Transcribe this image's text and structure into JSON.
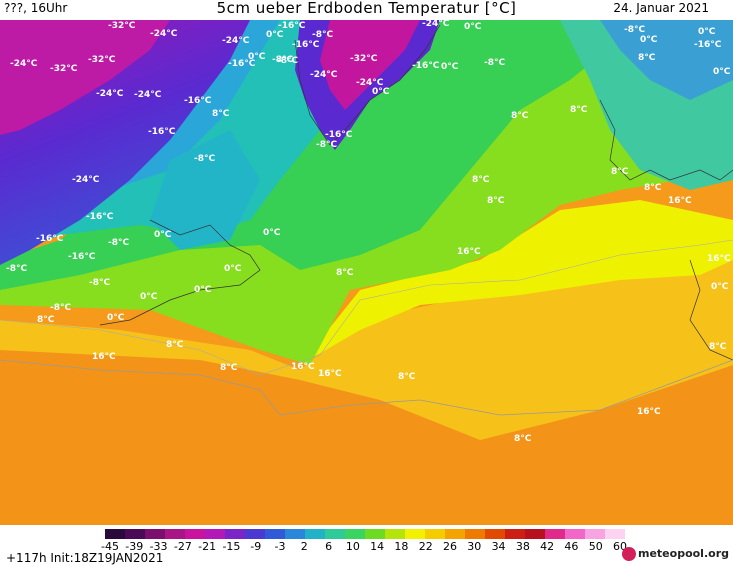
{
  "header": {
    "left": "???, 16Uhr",
    "title": "5cm ueber Erdboden Temperatur [°C]",
    "date": "24. Januar 2021"
  },
  "map": {
    "labels": [
      {
        "id": "l1",
        "t": "-32°C"
      },
      {
        "id": "l2",
        "t": "-24°C"
      },
      {
        "id": "l3",
        "t": "-24°C"
      },
      {
        "id": "l4",
        "t": "-16°C"
      },
      {
        "id": "l5",
        "t": "-8°C"
      },
      {
        "id": "l6",
        "t": "-24°C"
      },
      {
        "id": "l7",
        "t": "0°C"
      },
      {
        "id": "l8",
        "t": "-16°C"
      },
      {
        "id": "l9",
        "t": "0°C"
      },
      {
        "id": "l10",
        "t": "-8°C"
      },
      {
        "id": "l11",
        "t": "0°C"
      },
      {
        "id": "l12",
        "t": "-24°C"
      },
      {
        "id": "l13",
        "t": "-32°C"
      },
      {
        "id": "l14",
        "t": "-32°C"
      },
      {
        "id": "l15",
        "t": "-24°C"
      },
      {
        "id": "l16",
        "t": "-16°C"
      },
      {
        "id": "l17",
        "t": "-8°C"
      },
      {
        "id": "l18",
        "t": "-16°C"
      },
      {
        "id": "l19",
        "t": "-24°C"
      },
      {
        "id": "l20",
        "t": "-32°C"
      },
      {
        "id": "l21",
        "t": "-16°C"
      },
      {
        "id": "l22",
        "t": "0°C"
      },
      {
        "id": "l23",
        "t": "-8°C"
      },
      {
        "id": "l24",
        "t": "0°C"
      },
      {
        "id": "l25",
        "t": "-24°C"
      },
      {
        "id": "l26",
        "t": "-24°C"
      },
      {
        "id": "l27",
        "t": "-16°C"
      },
      {
        "id": "l28",
        "t": "-16°C"
      },
      {
        "id": "l29",
        "t": "-8°C"
      },
      {
        "id": "l30",
        "t": "-24°C"
      },
      {
        "id": "l31",
        "t": "-16°C"
      },
      {
        "id": "l32",
        "t": "-16°C"
      },
      {
        "id": "l33",
        "t": "-8°C"
      },
      {
        "id": "l34",
        "t": "-16°C"
      },
      {
        "id": "l35",
        "t": "-8°C"
      },
      {
        "id": "l36",
        "t": "0°C"
      },
      {
        "id": "l37",
        "t": "0°C"
      },
      {
        "id": "l38",
        "t": "0°C"
      },
      {
        "id": "l39",
        "t": "0°C"
      },
      {
        "id": "l40",
        "t": "0°C"
      },
      {
        "id": "l41",
        "t": "-8°C"
      },
      {
        "id": "l42",
        "t": "8°C"
      },
      {
        "id": "l43",
        "t": "8°C"
      },
      {
        "id": "l44",
        "t": "8°C"
      },
      {
        "id": "l45",
        "t": "16°C"
      },
      {
        "id": "l46",
        "t": "16°C"
      },
      {
        "id": "l47",
        "t": "8°C"
      },
      {
        "id": "l48",
        "t": "16°C"
      },
      {
        "id": "l49",
        "t": "16°C"
      },
      {
        "id": "l50",
        "t": "8°C"
      },
      {
        "id": "l51",
        "t": "8°C"
      },
      {
        "id": "l52",
        "t": "8°C"
      },
      {
        "id": "l53",
        "t": "8°C"
      },
      {
        "id": "l54",
        "t": "8°C"
      },
      {
        "id": "l55",
        "t": "8°C"
      },
      {
        "id": "l56",
        "t": "8°C"
      },
      {
        "id": "l57",
        "t": "16°C"
      },
      {
        "id": "l58",
        "t": "16°C"
      },
      {
        "id": "l59",
        "t": "8°C"
      },
      {
        "id": "l60",
        "t": "16°C"
      },
      {
        "id": "l61",
        "t": "8°C"
      },
      {
        "id": "l62",
        "t": "0°C"
      },
      {
        "id": "l63",
        "t": "-16°C"
      },
      {
        "id": "l64",
        "t": "-8°C"
      },
      {
        "id": "l65",
        "t": "0°C"
      },
      {
        "id": "l66",
        "t": "0°C"
      },
      {
        "id": "l67",
        "t": "0°C"
      },
      {
        "id": "l68",
        "t": "8°C"
      },
      {
        "id": "l69",
        "t": "0°C"
      },
      {
        "id": "l70",
        "t": "-8°C"
      },
      {
        "id": "l71",
        "t": "-8°C"
      },
      {
        "id": "l72",
        "t": "8°C"
      }
    ]
  },
  "legend": {
    "ticks": [
      "-45",
      "-39",
      "-33",
      "-27",
      "-21",
      "-15",
      "-9",
      "-3",
      "2",
      "6",
      "10",
      "14",
      "18",
      "22",
      "26",
      "30",
      "34",
      "38",
      "42",
      "46",
      "50",
      "60"
    ],
    "colors": [
      "#2a0a3a",
      "#4b0a55",
      "#7a0f6e",
      "#a81686",
      "#c9129e",
      "#b219b8",
      "#7b25c8",
      "#4a3ad2",
      "#2f5bd8",
      "#2a86d8",
      "#22b2c8",
      "#2ecb98",
      "#3ad460",
      "#6ddb22",
      "#b4e40a",
      "#f2f200",
      "#f5cc00",
      "#f5a300",
      "#ef7a00",
      "#e24a00",
      "#cc1e12",
      "#b8101e",
      "#e0298a",
      "#f266c8",
      "#f8a3e2",
      "#fcd3f1"
    ]
  },
  "footer": {
    "init": "+117h  Init:18Z19JAN2021",
    "brand": "meteopool.org"
  },
  "colors": {
    "ocean_warm": "#f59a1a",
    "yellow_band": "#f2e000",
    "green": "#6fd72a",
    "teal": "#2ec6a8",
    "blue": "#3f62d8",
    "purple": "#7a2bc6",
    "magenta": "#c414a6"
  }
}
